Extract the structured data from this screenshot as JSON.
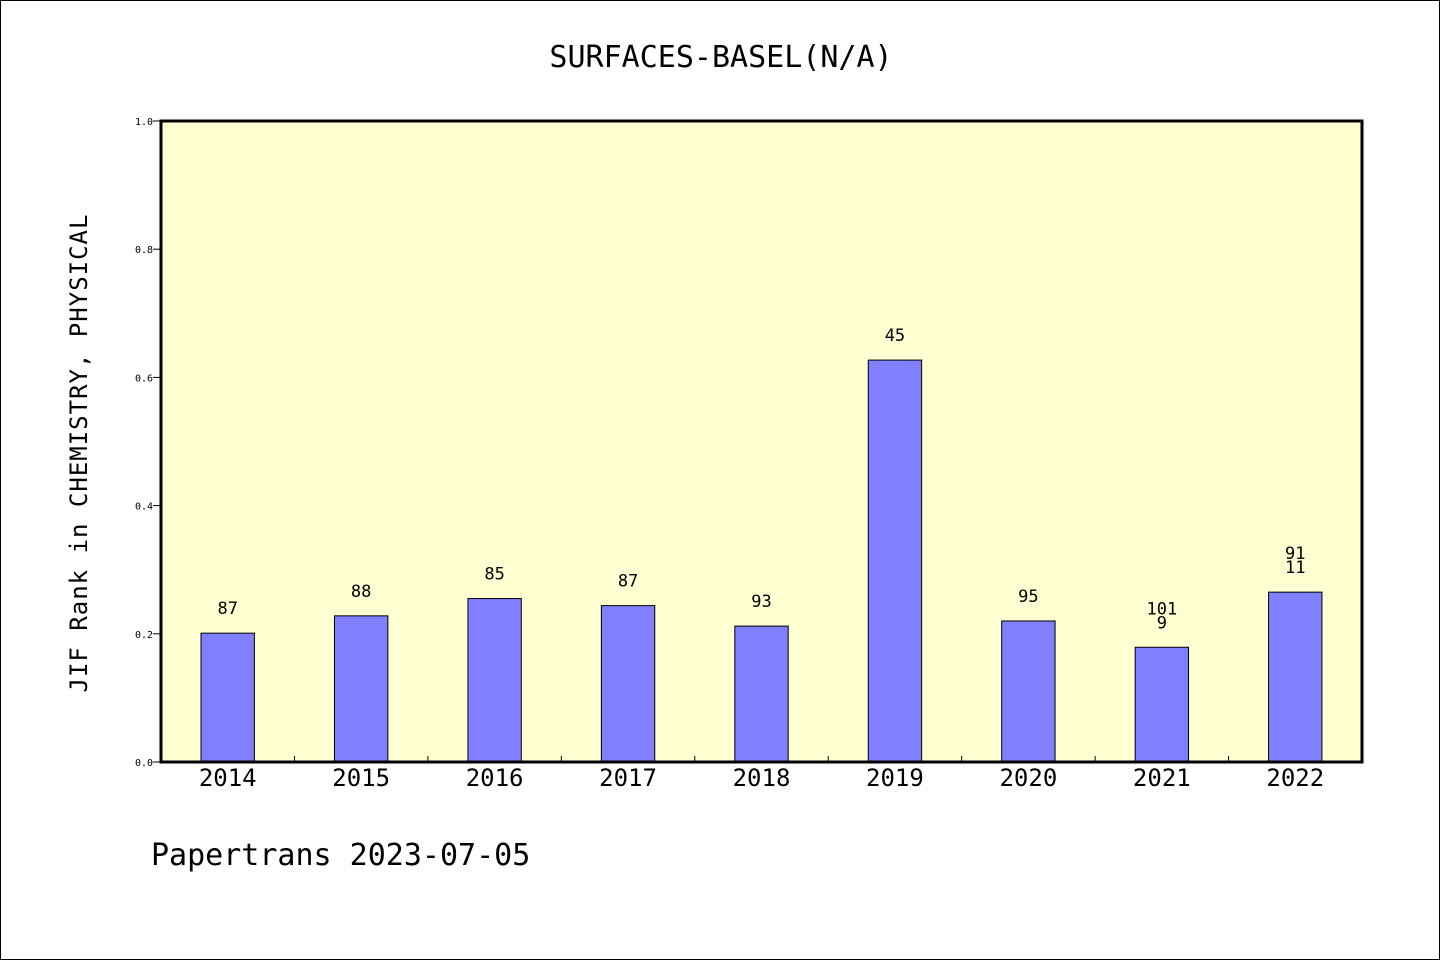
{
  "chart_data": {
    "type": "bar",
    "title": "SURFACES-BASEL(N/A)",
    "ylabel": "JIF Rank in CHEMISTRY, PHYSICAL",
    "xlabel": "",
    "categories": [
      "2014",
      "2015",
      "2016",
      "2017",
      "2018",
      "2019",
      "2020",
      "2021",
      "2022"
    ],
    "values": [
      0.201,
      0.228,
      0.255,
      0.244,
      0.212,
      0.627,
      0.22,
      0.179,
      0.265
    ],
    "bar_labels": [
      [
        "87"
      ],
      [
        "88"
      ],
      [
        "85"
      ],
      [
        "87"
      ],
      [
        "93"
      ],
      [
        "45"
      ],
      [
        "95"
      ],
      [
        "101",
        "9"
      ],
      [
        "91",
        "11"
      ]
    ],
    "ylim": [
      0,
      1.0
    ],
    "yticks": [
      "0.0",
      "0.2",
      "0.4",
      "0.6",
      "0.8",
      "1.0"
    ],
    "grid": false,
    "plot_background": "#ffffd2",
    "bar_color": "#8080ff",
    "footer": "Papertrans 2023-07-05"
  }
}
